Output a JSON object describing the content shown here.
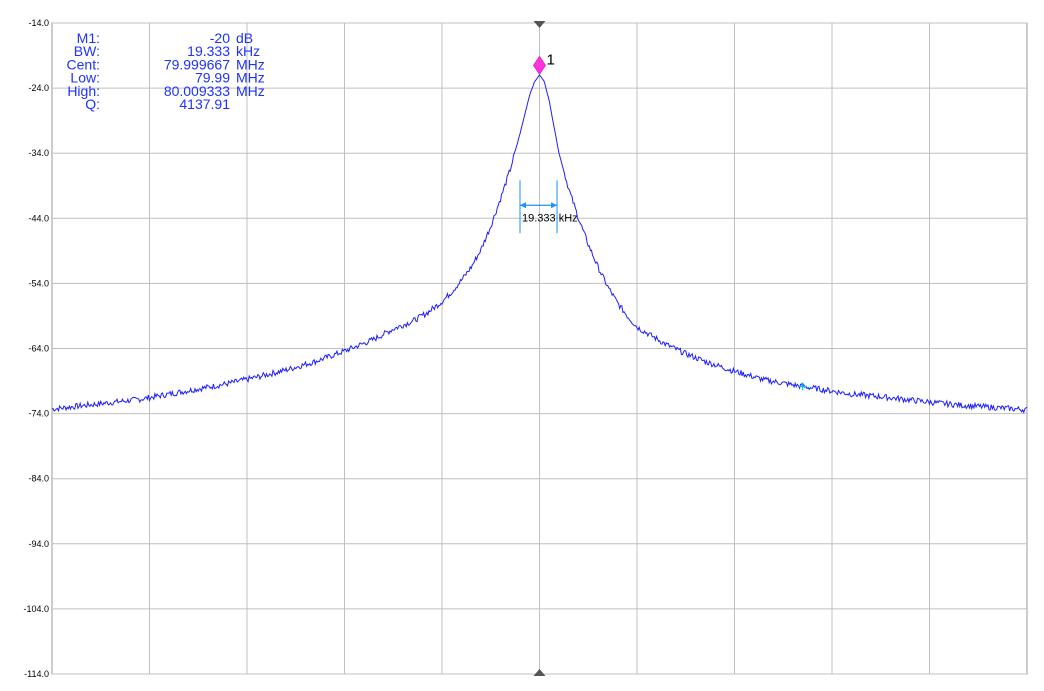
{
  "readout": [
    {
      "label": "M1:",
      "value": "-20",
      "unit": "dB"
    },
    {
      "label": "BW:",
      "value": "19.333",
      "unit": "kHz"
    },
    {
      "label": "Cent:",
      "value": "79.999667",
      "unit": "MHz"
    },
    {
      "label": "Low:",
      "value": "79.99",
      "unit": "MHz"
    },
    {
      "label": "High:",
      "value": "80.009333",
      "unit": "MHz"
    },
    {
      "label": "Q:",
      "value": "4137.91",
      "unit": ""
    }
  ],
  "bandwidth_annotation": "19.333 kHz",
  "marker": {
    "label": "1",
    "color": "#ff33dd"
  },
  "colors": {
    "trace": "#1e1eff",
    "grid": "#c0c0c0",
    "readout": "#1e32ff",
    "marker": "#ff33dd",
    "bandwidth": "#1e90ff",
    "aux_marker": "#00cccc"
  },
  "chart_data": {
    "type": "line",
    "title": "",
    "xlabel": "",
    "ylabel": "",
    "yticks": [
      "-14.0",
      "-24.0",
      "-34.0",
      "-44.0",
      "-54.0",
      "-64.0",
      "-74.0",
      "-84.0",
      "-94.0",
      "-104.0",
      "-114.0"
    ],
    "ylim": [
      -114,
      -14
    ],
    "x_divisions": 10,
    "grid": true,
    "legend": "none",
    "series": [
      {
        "x": [
          0,
          0.3,
          0.6,
          0.9,
          1.2,
          1.5,
          1.8,
          2.1,
          2.4,
          2.7,
          3.0,
          3.3,
          3.5,
          3.7,
          3.85,
          4.0,
          4.1,
          4.2,
          4.3,
          4.4,
          4.5,
          4.6,
          4.7,
          4.8,
          4.85,
          4.9,
          4.95,
          5.0,
          5.05,
          5.1,
          5.15,
          5.2,
          5.3,
          5.4,
          5.5,
          5.6,
          5.7,
          5.8,
          5.9,
          6.0,
          6.1,
          6.2,
          6.3,
          6.5,
          6.7,
          7.0,
          7.3,
          7.6,
          7.9,
          8.2,
          8.5,
          8.8,
          9.1,
          9.4,
          9.7,
          10.0
        ],
        "y": [
          -73.3,
          -72.8,
          -72.3,
          -71.8,
          -71.0,
          -70.2,
          -69.4,
          -68.4,
          -67.3,
          -66.0,
          -64.4,
          -62.6,
          -61.0,
          -59.8,
          -58.5,
          -56.8,
          -55.3,
          -53.5,
          -51.5,
          -48.8,
          -45.2,
          -41.0,
          -36.5,
          -31.0,
          -28.0,
          -25.0,
          -23.0,
          -22.0,
          -23.0,
          -26.0,
          -30.0,
          -34.0,
          -39.5,
          -44.0,
          -48.0,
          -51.5,
          -54.5,
          -57.0,
          -59.0,
          -60.7,
          -61.6,
          -62.5,
          -63.4,
          -64.8,
          -66.0,
          -67.5,
          -68.8,
          -69.6,
          -70.3,
          -71.0,
          -71.4,
          -71.9,
          -72.4,
          -72.8,
          -73.1,
          -73.4
        ],
        "values_note_x": "x in horizontal grid divisions (0-10), center frequency at division 5"
      }
    ]
  }
}
